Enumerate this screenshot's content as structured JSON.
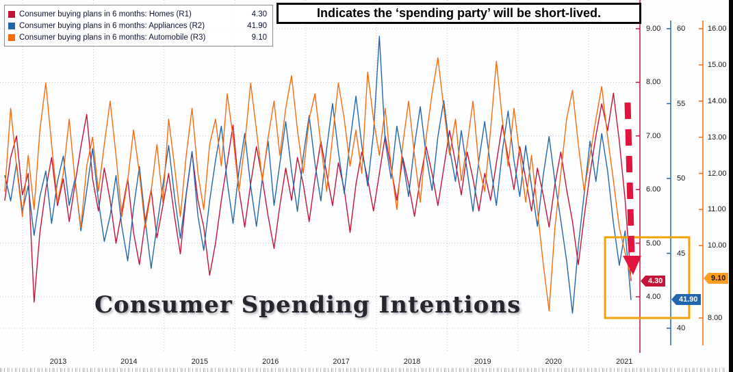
{
  "annotation_box": {
    "text": "Indicates the ‘spending party’ will be short-lived."
  },
  "watermark_title": "Consumer Spending Intentions",
  "legend": {
    "items": [
      {
        "label": "Consumer buying plans in 6 months: Homes (R1)",
        "value": "4.30",
        "color": "#c41239"
      },
      {
        "label": "Consumer buying plans in 6 months: Appliances (R2)",
        "value": "41.90",
        "color": "#2066ac"
      },
      {
        "label": "Consumer buying plans in 6 months: Automobile (R3)",
        "value": "9.10",
        "color": "#f96a0d"
      }
    ]
  },
  "decorations": {
    "highlight_box_color": "#f0a202",
    "arrow_color": "#e0143c"
  },
  "chart_data": {
    "type": "line",
    "title": "Consumer Spending Intentions",
    "frequency": "monthly",
    "x_range_years": [
      2012.3,
      2021.1
    ],
    "x_tick_labels": [
      "2013",
      "2014",
      "2015",
      "2016",
      "2017",
      "2018",
      "2019",
      "2020",
      "2021"
    ],
    "grid": true,
    "legend_position": "top-left",
    "axes": [
      {
        "id": "r1",
        "label": "Homes (R1)",
        "side": "right",
        "color": "#c41239",
        "marker_bg": "#c41239",
        "tick_values": [
          9,
          8,
          7,
          6,
          5,
          4
        ],
        "tick_labels": [
          "9.00",
          "8.00",
          "7.00",
          "6.00",
          "5.00",
          "4.00"
        ],
        "last_marker": {
          "text": "4.30",
          "value": 4.3,
          "text_color": "#ffffff"
        }
      },
      {
        "id": "r2",
        "label": "Appliances (R2)",
        "side": "right",
        "color": "#2066ac",
        "marker_bg": "#2066ac",
        "tick_values": [
          60,
          55,
          50,
          45,
          40
        ],
        "tick_labels": [
          "60",
          "55",
          "50",
          "45",
          "40"
        ],
        "last_marker": {
          "text": "41.90",
          "value": 41.9,
          "text_color": "#ffffff"
        }
      },
      {
        "id": "r3",
        "label": "Automobile (R3)",
        "side": "right",
        "color": "#f96a0d",
        "marker_bg": "#ff9d20",
        "tick_values": [
          16,
          15,
          14,
          13,
          12,
          11,
          10,
          8
        ],
        "tick_labels": [
          "16.00",
          "15.00",
          "14.00",
          "13.00",
          "12.00",
          "11.00",
          "10.00",
          "8.00"
        ],
        "last_marker": {
          "text": "9.10",
          "value": 9.1,
          "text_color": "#141414"
        }
      }
    ],
    "series": [
      {
        "name": "Consumer buying plans in 6 months: Homes (R1)",
        "axis": "r1",
        "color": "#c41239",
        "last_value": 4.3,
        "values": [
          5.8,
          6.6,
          7.0,
          5.9,
          6.3,
          3.9,
          5.2,
          6.0,
          6.6,
          5.7,
          6.2,
          5.4,
          6.1,
          6.8,
          7.4,
          6.2,
          5.6,
          6.4,
          5.8,
          5.0,
          5.6,
          6.2,
          5.2,
          4.6,
          5.4,
          6.0,
          5.1,
          5.7,
          6.3,
          5.5,
          4.8,
          5.9,
          6.7,
          5.8,
          5.3,
          4.4,
          5.0,
          5.8,
          6.5,
          7.2,
          6.0,
          5.3,
          6.1,
          6.8,
          6.2,
          5.5,
          4.9,
          5.7,
          6.4,
          5.8,
          6.6,
          6.1,
          5.4,
          6.2,
          6.9,
          6.3,
          5.7,
          6.5,
          6.0,
          5.2,
          6.1,
          6.7,
          6.2,
          5.6,
          6.3,
          7.0,
          6.4,
          5.8,
          6.6,
          6.1,
          5.5,
          6.2,
          6.8,
          6.3,
          5.7,
          6.4,
          7.1,
          6.5,
          5.9,
          6.7,
          6.2,
          5.6,
          6.3,
          5.8,
          6.5,
          7.2,
          6.6,
          6.0,
          6.8,
          6.2,
          5.6,
          6.4,
          5.9,
          5.3,
          6.1,
          6.7,
          6.0,
          5.4,
          4.6,
          5.5,
          6.3,
          7.0,
          7.6,
          7.1,
          7.8,
          6.9,
          5.8,
          4.3
        ]
      },
      {
        "name": "Consumer buying plans in 6 months: Appliances (R2)",
        "axis": "r2",
        "color": "#2066ac",
        "last_value": 41.9,
        "values": [
          50.2,
          48.5,
          51.0,
          47.8,
          49.5,
          46.2,
          48.8,
          50.5,
          47.0,
          49.8,
          51.5,
          48.2,
          50.0,
          46.5,
          49.2,
          52.0,
          48.5,
          45.8,
          47.5,
          50.2,
          46.8,
          44.5,
          48.0,
          50.8,
          47.2,
          44.0,
          46.8,
          49.5,
          52.2,
          48.8,
          46.0,
          49.0,
          51.8,
          47.5,
          45.2,
          48.5,
          51.2,
          53.5,
          49.8,
          47.0,
          50.5,
          53.0,
          49.5,
          46.8,
          50.0,
          52.5,
          48.2,
          51.0,
          53.8,
          50.5,
          47.8,
          51.5,
          54.2,
          51.0,
          48.5,
          52.0,
          55.0,
          51.8,
          49.0,
          52.5,
          55.5,
          52.2,
          49.5,
          53.0,
          59.5,
          52.5,
          50.0,
          53.5,
          51.2,
          48.8,
          52.2,
          54.8,
          51.5,
          49.2,
          52.8,
          55.2,
          52.0,
          49.8,
          53.2,
          50.5,
          47.8,
          51.2,
          53.8,
          50.8,
          48.2,
          51.8,
          54.5,
          51.2,
          48.8,
          52.2,
          49.5,
          46.8,
          50.2,
          52.8,
          49.8,
          47.2,
          44.5,
          41.0,
          45.5,
          49.0,
          52.5,
          49.8,
          53.0,
          50.5,
          47.0,
          44.2,
          46.5,
          41.9
        ]
      },
      {
        "name": "Consumer buying plans in 6 months: Automobile (R3)",
        "axis": "r3",
        "color": "#f96a0d",
        "last_value": 9.1,
        "values": [
          11.5,
          13.8,
          12.2,
          10.8,
          12.5,
          11.0,
          13.2,
          14.5,
          12.8,
          11.2,
          12.0,
          13.5,
          11.8,
          10.5,
          12.2,
          13.0,
          11.5,
          12.8,
          14.0,
          12.5,
          10.8,
          11.8,
          13.2,
          12.0,
          10.5,
          11.5,
          12.8,
          11.2,
          13.5,
          12.2,
          10.8,
          12.5,
          13.8,
          12.0,
          11.0,
          12.8,
          13.5,
          12.2,
          14.2,
          13.0,
          11.5,
          12.8,
          14.5,
          13.2,
          11.8,
          13.0,
          14.0,
          12.5,
          13.8,
          14.7,
          13.2,
          12.0,
          13.5,
          14.2,
          12.8,
          11.5,
          13.0,
          14.5,
          13.5,
          12.2,
          13.2,
          12.0,
          14.8,
          13.5,
          12.5,
          13.8,
          12.2,
          11.0,
          12.8,
          14.0,
          12.5,
          11.2,
          13.0,
          14.2,
          15.2,
          13.8,
          12.5,
          13.5,
          11.8,
          12.8,
          14.0,
          12.2,
          11.5,
          13.2,
          15.1,
          13.5,
          12.2,
          13.8,
          12.5,
          11.2,
          12.5,
          11.0,
          9.5,
          8.2,
          10.5,
          12.0,
          13.5,
          14.3,
          12.8,
          11.5,
          12.5,
          13.5,
          14.4,
          13.0,
          11.8,
          10.5,
          9.8,
          9.1
        ]
      }
    ]
  }
}
